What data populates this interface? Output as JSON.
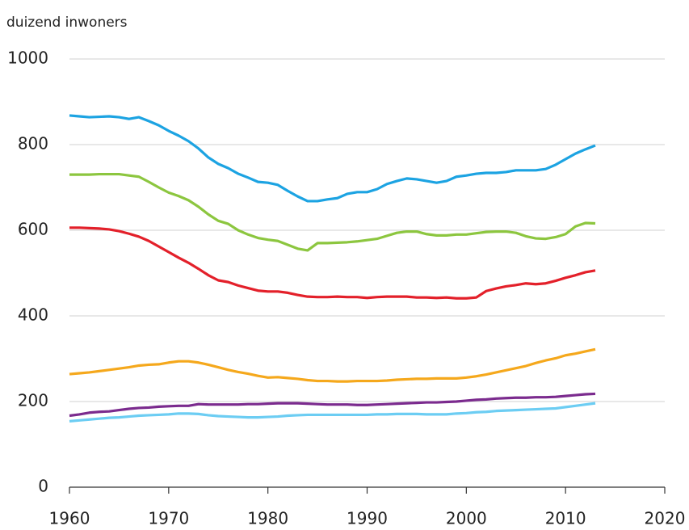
{
  "chart_data": {
    "type": "line",
    "ylabel": "duizend inwoners",
    "x": [
      1960,
      1961,
      1962,
      1963,
      1964,
      1965,
      1966,
      1967,
      1968,
      1969,
      1970,
      1971,
      1972,
      1973,
      1974,
      1975,
      1976,
      1977,
      1978,
      1979,
      1980,
      1981,
      1982,
      1983,
      1984,
      1985,
      1986,
      1987,
      1988,
      1989,
      1990,
      1991,
      1992,
      1993,
      1994,
      1995,
      1996,
      1997,
      1998,
      1999,
      2000,
      2001,
      2002,
      2003,
      2004,
      2005,
      2006,
      2007,
      2008,
      2009,
      2010,
      2011,
      2012,
      2013
    ],
    "series": [
      {
        "color": "#1ca3e2",
        "values": [
          868,
          866,
          864,
          865,
          866,
          864,
          860,
          864,
          855,
          845,
          832,
          821,
          808,
          791,
          770,
          755,
          745,
          732,
          723,
          713,
          711,
          706,
          692,
          679,
          668,
          668,
          672,
          675,
          685,
          689,
          689,
          696,
          708,
          715,
          721,
          719,
          715,
          711,
          715,
          725,
          728,
          732,
          734,
          734,
          736,
          740,
          740,
          740,
          743,
          753,
          766,
          779,
          789,
          798
        ]
      },
      {
        "color": "#8cc63f",
        "values": [
          730,
          730,
          730,
          731,
          731,
          731,
          728,
          725,
          713,
          700,
          688,
          680,
          670,
          655,
          637,
          622,
          615,
          600,
          590,
          582,
          578,
          575,
          566,
          557,
          553,
          570,
          570,
          571,
          572,
          574,
          577,
          580,
          587,
          594,
          597,
          597,
          591,
          588,
          588,
          590,
          590,
          593,
          596,
          597,
          597,
          594,
          586,
          581,
          580,
          584,
          591,
          609,
          617,
          616
        ]
      },
      {
        "color": "#e3202a",
        "values": [
          606,
          606,
          605,
          604,
          602,
          598,
          592,
          585,
          575,
          562,
          549,
          536,
          524,
          510,
          495,
          483,
          479,
          471,
          465,
          459,
          457,
          457,
          454,
          449,
          445,
          444,
          444,
          445,
          444,
          444,
          442,
          444,
          445,
          445,
          445,
          443,
          443,
          442,
          443,
          441,
          441,
          443,
          458,
          464,
          469,
          472,
          476,
          474,
          476,
          482,
          489,
          495,
          502,
          506
        ]
      },
      {
        "color": "#f5a81c",
        "values": [
          264,
          266,
          268,
          271,
          274,
          277,
          280,
          284,
          286,
          287,
          291,
          294,
          294,
          291,
          286,
          280,
          274,
          269,
          265,
          260,
          256,
          257,
          255,
          253,
          250,
          248,
          248,
          247,
          247,
          248,
          248,
          248,
          249,
          251,
          252,
          253,
          253,
          254,
          254,
          254,
          256,
          259,
          263,
          268,
          273,
          278,
          283,
          290,
          296,
          301,
          308,
          312,
          317,
          322
        ]
      },
      {
        "color": "#7b2b8e",
        "values": [
          167,
          170,
          174,
          176,
          177,
          180,
          183,
          185,
          186,
          188,
          189,
          190,
          190,
          194,
          193,
          193,
          193,
          193,
          194,
          194,
          195,
          196,
          196,
          196,
          195,
          194,
          193,
          193,
          193,
          192,
          192,
          193,
          194,
          195,
          196,
          197,
          198,
          198,
          199,
          200,
          202,
          204,
          205,
          207,
          208,
          209,
          209,
          210,
          210,
          211,
          213,
          215,
          217,
          218
        ]
      },
      {
        "color": "#6ccdf3",
        "values": [
          154,
          156,
          158,
          160,
          162,
          163,
          165,
          167,
          168,
          169,
          170,
          172,
          172,
          171,
          168,
          166,
          165,
          164,
          163,
          163,
          164,
          165,
          167,
          168,
          169,
          169,
          169,
          169,
          169,
          169,
          169,
          170,
          170,
          171,
          171,
          171,
          170,
          170,
          170,
          172,
          173,
          175,
          176,
          178,
          179,
          180,
          181,
          182,
          183,
          184,
          187,
          190,
          193,
          196
        ]
      }
    ],
    "xlim": [
      1960,
      2020
    ],
    "xticks": [
      1960,
      1970,
      1980,
      1990,
      2000,
      2010,
      2020
    ],
    "ylim": [
      0,
      1000
    ],
    "yticks": [
      0,
      200,
      400,
      600,
      800,
      1000
    ],
    "grid": true
  }
}
